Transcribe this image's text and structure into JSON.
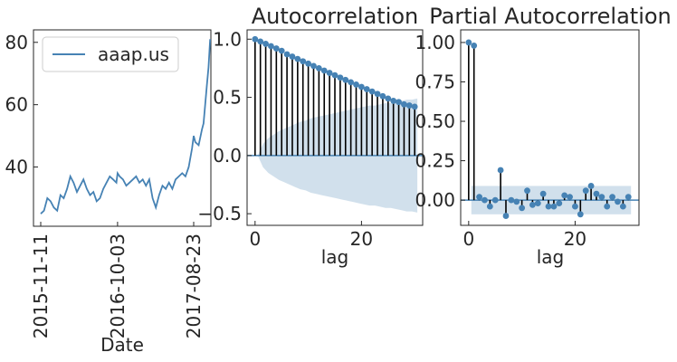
{
  "chart_data": [
    {
      "type": "line",
      "panel": "price",
      "legend": "aaap.us",
      "legend_position": "upper-left",
      "xlabel": "Date",
      "x_ticks": [
        "2015-11-11",
        "2016-10-03",
        "2017-08-23"
      ],
      "y_ticks": [
        40,
        60,
        80
      ],
      "ylim": [
        21,
        84
      ],
      "color": "#4682b4",
      "series": [
        {
          "name": "aaap.us",
          "x": [
            "2015-11-11",
            "2015-11-25",
            "2015-12-09",
            "2015-12-23",
            "2016-01-06",
            "2016-01-20",
            "2016-02-03",
            "2016-02-17",
            "2016-03-02",
            "2016-03-16",
            "2016-03-30",
            "2016-04-13",
            "2016-04-27",
            "2016-05-11",
            "2016-05-25",
            "2016-06-08",
            "2016-06-22",
            "2016-07-06",
            "2016-07-20",
            "2016-08-03",
            "2016-08-17",
            "2016-08-31",
            "2016-09-14",
            "2016-09-28",
            "2016-10-03",
            "2016-10-12",
            "2016-10-26",
            "2016-11-09",
            "2016-11-23",
            "2016-12-07",
            "2016-12-21",
            "2017-01-04",
            "2017-01-18",
            "2017-02-01",
            "2017-02-15",
            "2017-03-01",
            "2017-03-15",
            "2017-03-29",
            "2017-04-12",
            "2017-04-26",
            "2017-05-10",
            "2017-05-24",
            "2017-06-07",
            "2017-06-21",
            "2017-07-05",
            "2017-07-19",
            "2017-08-02",
            "2017-08-16",
            "2017-08-23",
            "2017-08-30",
            "2017-09-13",
            "2017-09-27",
            "2017-10-04",
            "2017-10-11",
            "2017-10-18",
            "2017-10-25",
            "2017-11-01"
          ],
          "values": [
            25,
            26,
            30,
            29,
            27,
            26,
            31,
            30,
            33,
            37,
            35,
            32,
            34,
            36,
            33,
            31,
            32,
            29,
            30,
            33,
            35,
            37,
            36,
            35,
            38,
            37,
            36,
            34,
            35,
            36,
            37,
            35,
            36,
            34,
            36,
            30,
            27,
            31,
            34,
            33,
            35,
            33,
            36,
            37,
            38,
            37,
            40,
            46,
            50,
            48,
            47,
            52,
            54,
            60,
            66,
            72,
            81
          ]
        }
      ]
    },
    {
      "type": "stem",
      "panel": "acf",
      "title": "Autocorrelation",
      "xlabel": "lag",
      "x_ticks": [
        0,
        20
      ],
      "y_ticks": [
        -0.5,
        0.0,
        0.5,
        1.0
      ],
      "xlim": [
        -1.5,
        31.5
      ],
      "ylim": [
        -0.6,
        1.08
      ],
      "lags": [
        0,
        1,
        2,
        3,
        4,
        5,
        6,
        7,
        8,
        9,
        10,
        11,
        12,
        13,
        14,
        15,
        16,
        17,
        18,
        19,
        20,
        21,
        22,
        23,
        24,
        25,
        26,
        27,
        28,
        29,
        30
      ],
      "values": [
        1.0,
        0.98,
        0.96,
        0.94,
        0.92,
        0.9,
        0.87,
        0.85,
        0.83,
        0.81,
        0.79,
        0.77,
        0.75,
        0.73,
        0.71,
        0.69,
        0.67,
        0.65,
        0.63,
        0.61,
        0.59,
        0.57,
        0.55,
        0.53,
        0.51,
        0.49,
        0.47,
        0.46,
        0.44,
        0.43,
        0.42
      ],
      "confidence_band": [
        0.0,
        0.1,
        0.15,
        0.18,
        0.21,
        0.23,
        0.25,
        0.27,
        0.29,
        0.3,
        0.32,
        0.33,
        0.34,
        0.35,
        0.36,
        0.37,
        0.38,
        0.39,
        0.4,
        0.41,
        0.42,
        0.43,
        0.43,
        0.44,
        0.45,
        0.45,
        0.46,
        0.47,
        0.48,
        0.48,
        0.49
      ],
      "color": "#4682b4"
    },
    {
      "type": "stem",
      "panel": "pacf",
      "title": "Partial Autocorrelation",
      "xlabel": "lag",
      "x_ticks": [
        0,
        20
      ],
      "y_ticks": [
        0.0,
        0.25,
        0.5,
        0.75,
        1.0
      ],
      "xlim": [
        -1.5,
        32
      ],
      "ylim": [
        -0.16,
        1.08
      ],
      "lags": [
        0,
        1,
        2,
        3,
        4,
        5,
        6,
        7,
        8,
        9,
        10,
        11,
        12,
        13,
        14,
        15,
        16,
        17,
        18,
        19,
        20,
        21,
        22,
        23,
        24,
        25,
        26,
        27,
        28,
        29,
        30
      ],
      "values": [
        1.0,
        0.98,
        0.02,
        0.0,
        -0.04,
        0.0,
        0.19,
        -0.1,
        0.0,
        -0.01,
        -0.05,
        0.06,
        -0.03,
        -0.02,
        0.04,
        -0.04,
        -0.04,
        -0.02,
        0.03,
        0.02,
        -0.04,
        -0.09,
        0.06,
        0.09,
        0.04,
        0.02,
        -0.04,
        0.02,
        -0.01,
        -0.04,
        0.02
      ],
      "confidence_band": 0.09,
      "color": "#4682b4"
    }
  ]
}
